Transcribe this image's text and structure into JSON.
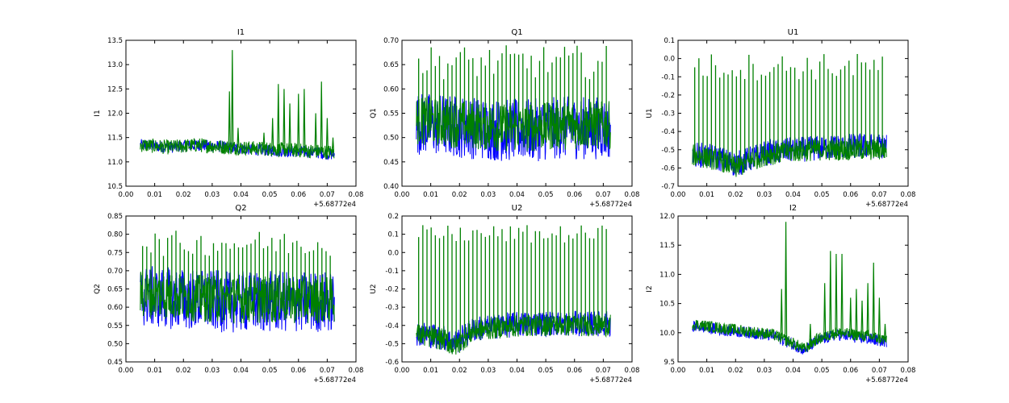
{
  "figure": {
    "x_offset_label": "+5.68772e4",
    "series_colors": [
      "#0000ff",
      "#008000"
    ]
  },
  "chart_data": [
    {
      "type": "line",
      "title": "I1",
      "ylabel": "I1",
      "xlim": [
        0.0,
        0.08
      ],
      "ylim": [
        10.5,
        13.5
      ],
      "xticks": [
        "0.00",
        "0.01",
        "0.02",
        "0.03",
        "0.04",
        "0.05",
        "0.06",
        "0.07",
        "0.08"
      ],
      "yticks": [
        "10.5",
        "11.0",
        "11.5",
        "12.0",
        "12.5",
        "13.0",
        "13.5"
      ],
      "x": [
        0.005,
        0.015,
        0.025,
        0.035,
        0.045,
        0.055,
        0.065,
        0.0725
      ],
      "series": [
        {
          "values": [
            11.35,
            11.3,
            11.35,
            11.3,
            11.25,
            11.22,
            11.2,
            11.15
          ],
          "spread": 0.12
        },
        {
          "values": [
            11.35,
            11.3,
            11.35,
            11.3,
            11.28,
            11.25,
            11.22,
            11.2
          ],
          "spread": 0.15,
          "spikes": [
            [
              0.037,
              13.3
            ],
            [
              0.036,
              12.45
            ],
            [
              0.039,
              11.7
            ],
            [
              0.048,
              11.6
            ],
            [
              0.051,
              11.9
            ],
            [
              0.053,
              12.6
            ],
            [
              0.055,
              12.5
            ],
            [
              0.057,
              12.2
            ],
            [
              0.06,
              12.4
            ],
            [
              0.062,
              12.5
            ],
            [
              0.066,
              12.0
            ],
            [
              0.068,
              12.65
            ],
            [
              0.07,
              11.9
            ],
            [
              0.072,
              11.5
            ]
          ]
        }
      ]
    },
    {
      "type": "line",
      "title": "Q1",
      "ylabel": "Q1",
      "xlim": [
        0.0,
        0.08
      ],
      "ylim": [
        0.4,
        0.7
      ],
      "xticks": [
        "0.00",
        "0.01",
        "0.02",
        "0.03",
        "0.04",
        "0.05",
        "0.06",
        "0.07",
        "0.08"
      ],
      "yticks": [
        "0.40",
        "0.45",
        "0.50",
        "0.55",
        "0.60",
        "0.65",
        "0.70"
      ],
      "x": [
        0.005,
        0.015,
        0.025,
        0.035,
        0.045,
        0.055,
        0.065,
        0.0725
      ],
      "series": [
        {
          "values": [
            0.53,
            0.525,
            0.52,
            0.515,
            0.515,
            0.52,
            0.52,
            0.52
          ],
          "spread": 0.065
        },
        {
          "values": [
            0.535,
            0.53,
            0.525,
            0.52,
            0.52,
            0.525,
            0.525,
            0.525
          ],
          "spread": 0.05,
          "spike_max": 0.69,
          "spike_min": 0.62
        }
      ]
    },
    {
      "type": "line",
      "title": "U1",
      "ylabel": "U1",
      "xlim": [
        0.0,
        0.08
      ],
      "ylim": [
        -0.7,
        0.1
      ],
      "xticks": [
        "0.00",
        "0.01",
        "0.02",
        "0.03",
        "0.04",
        "0.05",
        "0.06",
        "0.07",
        "0.08"
      ],
      "yticks": [
        "-0.7",
        "-0.6",
        "-0.5",
        "-0.4",
        "-0.3",
        "-0.2",
        "-0.1",
        "0.0",
        "0.1"
      ],
      "x": [
        0.005,
        0.015,
        0.02,
        0.03,
        0.04,
        0.05,
        0.06,
        0.0725
      ],
      "series": [
        {
          "values": [
            -0.52,
            -0.55,
            -0.58,
            -0.52,
            -0.5,
            -0.49,
            -0.48,
            -0.48
          ],
          "spread": 0.07
        },
        {
          "values": [
            -0.53,
            -0.56,
            -0.6,
            -0.53,
            -0.51,
            -0.5,
            -0.5,
            -0.5
          ],
          "spread": 0.06,
          "spike_max": 0.03,
          "spike_min": -0.12
        }
      ]
    },
    {
      "type": "line",
      "title": "Q2",
      "ylabel": "Q2",
      "xlim": [
        0.0,
        0.08
      ],
      "ylim": [
        0.45,
        0.85
      ],
      "xticks": [
        "0.00",
        "0.01",
        "0.02",
        "0.03",
        "0.04",
        "0.05",
        "0.06",
        "0.07",
        "0.08"
      ],
      "yticks": [
        "0.45",
        "0.50",
        "0.55",
        "0.60",
        "0.65",
        "0.70",
        "0.75",
        "0.80",
        "0.85"
      ],
      "x": [
        0.005,
        0.015,
        0.025,
        0.035,
        0.045,
        0.055,
        0.065,
        0.0725
      ],
      "series": [
        {
          "values": [
            0.63,
            0.625,
            0.62,
            0.615,
            0.615,
            0.615,
            0.615,
            0.615
          ],
          "spread": 0.085
        },
        {
          "values": [
            0.635,
            0.63,
            0.625,
            0.62,
            0.62,
            0.62,
            0.62,
            0.62
          ],
          "spread": 0.065,
          "spike_max": 0.81,
          "spike_min": 0.74
        }
      ]
    },
    {
      "type": "line",
      "title": "U2",
      "ylabel": "U2",
      "xlim": [
        0.0,
        0.08
      ],
      "ylim": [
        -0.6,
        0.2
      ],
      "xticks": [
        "0.00",
        "0.01",
        "0.02",
        "0.03",
        "0.04",
        "0.05",
        "0.06",
        "0.07",
        "0.08"
      ],
      "yticks": [
        "-0.6",
        "-0.5",
        "-0.4",
        "-0.3",
        "-0.2",
        "-0.1",
        "0.0",
        "0.1",
        "0.2"
      ],
      "x": [
        0.005,
        0.015,
        0.018,
        0.025,
        0.035,
        0.045,
        0.06,
        0.0725
      ],
      "series": [
        {
          "values": [
            -0.44,
            -0.47,
            -0.5,
            -0.42,
            -0.4,
            -0.39,
            -0.39,
            -0.39
          ],
          "spread": 0.07
        },
        {
          "values": [
            -0.45,
            -0.48,
            -0.52,
            -0.43,
            -0.41,
            -0.4,
            -0.4,
            -0.4
          ],
          "spread": 0.06,
          "spike_max": 0.15,
          "spike_min": 0.05
        }
      ]
    },
    {
      "type": "line",
      "title": "I2",
      "ylabel": "I2",
      "xlim": [
        0.0,
        0.08
      ],
      "ylim": [
        9.5,
        12.0
      ],
      "xticks": [
        "0.00",
        "0.01",
        "0.02",
        "0.03",
        "0.04",
        "0.05",
        "0.06",
        "0.07",
        "0.08"
      ],
      "yticks": [
        "9.5",
        "10.0",
        "10.5",
        "11.0",
        "11.5",
        "12.0"
      ],
      "x": [
        0.005,
        0.015,
        0.025,
        0.033,
        0.04,
        0.044,
        0.048,
        0.055,
        0.065,
        0.0725
      ],
      "series": [
        {
          "values": [
            10.12,
            10.05,
            10.0,
            9.95,
            9.8,
            9.7,
            9.85,
            9.97,
            9.9,
            9.85
          ],
          "spread": 0.1
        },
        {
          "values": [
            10.15,
            10.08,
            10.02,
            9.97,
            9.82,
            9.72,
            9.88,
            10.0,
            9.95,
            9.88
          ],
          "spread": 0.1,
          "spikes": [
            [
              0.0375,
              11.9
            ],
            [
              0.036,
              10.75
            ],
            [
              0.046,
              10.15
            ],
            [
              0.051,
              10.85
            ],
            [
              0.053,
              11.4
            ],
            [
              0.055,
              11.35
            ],
            [
              0.057,
              11.35
            ],
            [
              0.06,
              10.6
            ],
            [
              0.062,
              10.75
            ],
            [
              0.064,
              10.55
            ],
            [
              0.066,
              10.85
            ],
            [
              0.068,
              11.2
            ],
            [
              0.07,
              10.6
            ],
            [
              0.072,
              10.15
            ]
          ]
        }
      ]
    }
  ]
}
